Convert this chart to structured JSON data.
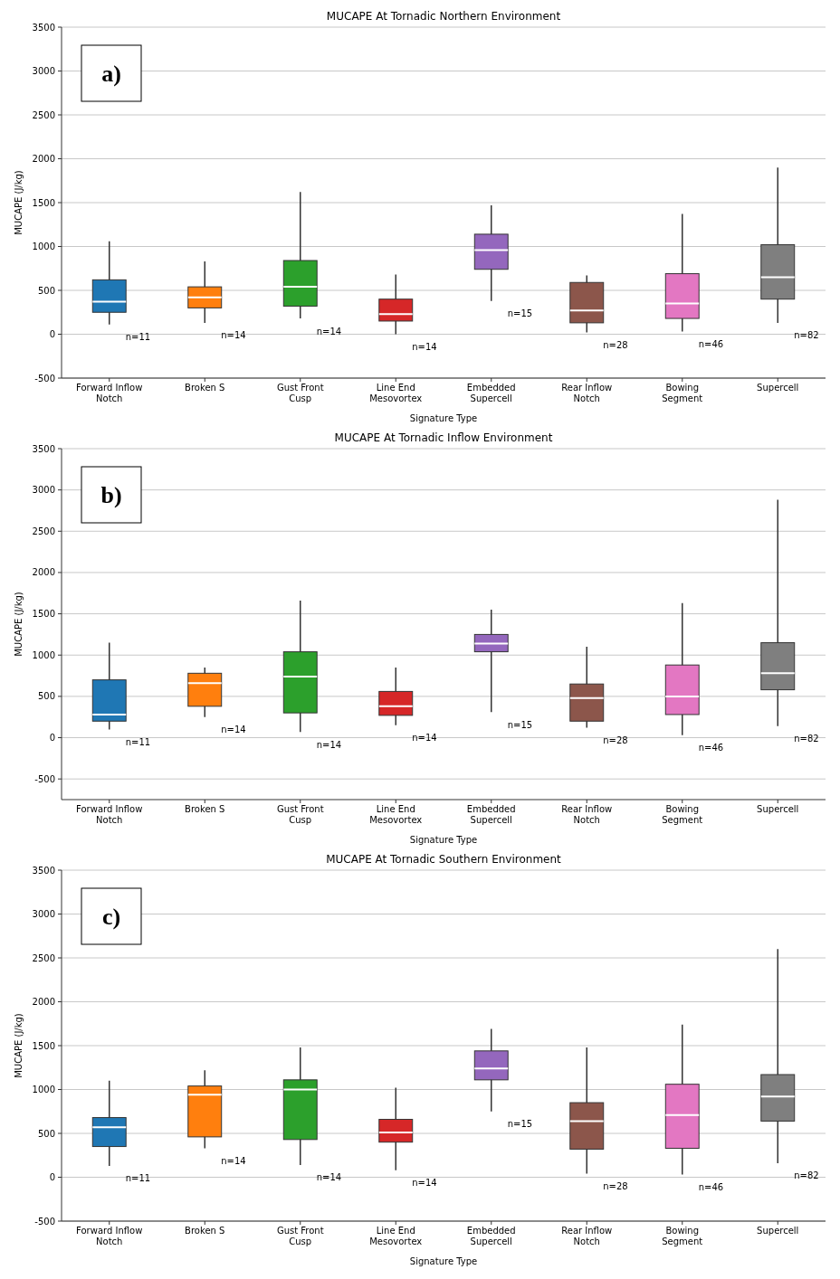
{
  "chart_data": [
    {
      "type": "box",
      "title": "MUCAPE At Tornadic Northern Environment",
      "xlabel": "Signature Type",
      "ylabel": "MUCAPE (J/kg)",
      "categories": [
        "Forward Inflow\nNotch",
        "Broken S",
        "Gust Front\nCusp",
        "Line End\nMesovortex",
        "Embedded\nSupercell",
        "Rear Inflow\nNotch",
        "Bowing\nSegment",
        "Supercell"
      ],
      "colors": [
        "#1f77b4",
        "#ff7f0e",
        "#2ca02c",
        "#d62728",
        "#9467bd",
        "#8c564b",
        "#e377c2",
        "#7f7f7f"
      ],
      "ylim": [
        -500,
        3500
      ],
      "yticks": [
        -500,
        0,
        500,
        1000,
        1500,
        2000,
        2500,
        3000,
        3500
      ],
      "grid": "y",
      "boxes": [
        {
          "low": 110,
          "q1": 250,
          "median": 370,
          "q3": 620,
          "high": 1060
        },
        {
          "low": 130,
          "q1": 300,
          "median": 420,
          "q3": 540,
          "high": 830
        },
        {
          "low": 180,
          "q1": 320,
          "median": 540,
          "q3": 840,
          "high": 1620
        },
        {
          "low": 0,
          "q1": 150,
          "median": 230,
          "q3": 400,
          "high": 680
        },
        {
          "low": 380,
          "q1": 740,
          "median": 960,
          "q3": 1140,
          "high": 1470
        },
        {
          "low": 20,
          "q1": 130,
          "median": 270,
          "q3": 590,
          "high": 670
        },
        {
          "low": 30,
          "q1": 180,
          "median": 350,
          "q3": 690,
          "high": 1370
        },
        {
          "low": 130,
          "q1": 400,
          "median": 650,
          "q3": 1020,
          "high": 1900
        }
      ],
      "annotations": [
        "a)",
        "n=11",
        "n=14",
        "n=14",
        "n=14",
        "n=15",
        "n=28",
        "n=46",
        "n=82"
      ]
    },
    {
      "type": "box",
      "title": "MUCAPE At Tornadic Inflow Environment",
      "xlabel": "Signature Type",
      "ylabel": "MUCAPE (J/kg)",
      "categories": [
        "Forward Inflow\nNotch",
        "Broken S",
        "Gust Front\nCusp",
        "Line End\nMesovortex",
        "Embedded\nSupercell",
        "Rear Inflow\nNotch",
        "Bowing\nSegment",
        "Supercell"
      ],
      "colors": [
        "#1f77b4",
        "#ff7f0e",
        "#2ca02c",
        "#d62728",
        "#9467bd",
        "#8c564b",
        "#e377c2",
        "#7f7f7f"
      ],
      "ylim": [
        -750,
        3500
      ],
      "yticks": [
        -500,
        0,
        500,
        1000,
        1500,
        2000,
        2500,
        3000,
        3500
      ],
      "grid": "y",
      "boxes": [
        {
          "low": 100,
          "q1": 200,
          "median": 280,
          "q3": 700,
          "high": 1150
        },
        {
          "low": 250,
          "q1": 380,
          "median": 660,
          "q3": 780,
          "high": 850
        },
        {
          "low": 70,
          "q1": 300,
          "median": 740,
          "q3": 1040,
          "high": 1660
        },
        {
          "low": 150,
          "q1": 270,
          "median": 380,
          "q3": 560,
          "high": 850
        },
        {
          "low": 310,
          "q1": 1040,
          "median": 1140,
          "q3": 1250,
          "high": 1550
        },
        {
          "low": 120,
          "q1": 200,
          "median": 480,
          "q3": 650,
          "high": 1100
        },
        {
          "low": 30,
          "q1": 280,
          "median": 500,
          "q3": 880,
          "high": 1630
        },
        {
          "low": 140,
          "q1": 580,
          "median": 780,
          "q3": 1150,
          "high": 2880
        }
      ],
      "annotations": [
        "b)",
        "n=11",
        "n=14",
        "n=14",
        "n=14",
        "n=15",
        "n=28",
        "n=46",
        "n=82"
      ]
    },
    {
      "type": "box",
      "title": "MUCAPE At Tornadic Southern Environment",
      "xlabel": "Signature Type",
      "ylabel": "MUCAPE (J/kg)",
      "categories": [
        "Forward Inflow\nNotch",
        "Broken S",
        "Gust Front\nCusp",
        "Line End\nMesovortex",
        "Embedded\nSupercell",
        "Rear Inflow\nNotch",
        "Bowing\nSegment",
        "Supercell"
      ],
      "colors": [
        "#1f77b4",
        "#ff7f0e",
        "#2ca02c",
        "#d62728",
        "#9467bd",
        "#8c564b",
        "#e377c2",
        "#7f7f7f"
      ],
      "ylim": [
        -500,
        3500
      ],
      "yticks": [
        -500,
        0,
        500,
        1000,
        1500,
        2000,
        2500,
        3000,
        3500
      ],
      "grid": "y",
      "boxes": [
        {
          "low": 130,
          "q1": 350,
          "median": 570,
          "q3": 680,
          "high": 1100
        },
        {
          "low": 330,
          "q1": 460,
          "median": 940,
          "q3": 1040,
          "high": 1220
        },
        {
          "low": 140,
          "q1": 430,
          "median": 1000,
          "q3": 1110,
          "high": 1480
        },
        {
          "low": 80,
          "q1": 400,
          "median": 510,
          "q3": 660,
          "high": 1020
        },
        {
          "low": 750,
          "q1": 1110,
          "median": 1240,
          "q3": 1440,
          "high": 1690
        },
        {
          "low": 40,
          "q1": 320,
          "median": 640,
          "q3": 850,
          "high": 1480
        },
        {
          "low": 30,
          "q1": 330,
          "median": 710,
          "q3": 1060,
          "high": 1740
        },
        {
          "low": 160,
          "q1": 640,
          "median": 920,
          "q3": 1170,
          "high": 2600
        }
      ],
      "annotations": [
        "c)",
        "n=11",
        "n=14",
        "n=14",
        "n=14",
        "n=15",
        "n=28",
        "n=46",
        "n=82"
      ]
    }
  ]
}
